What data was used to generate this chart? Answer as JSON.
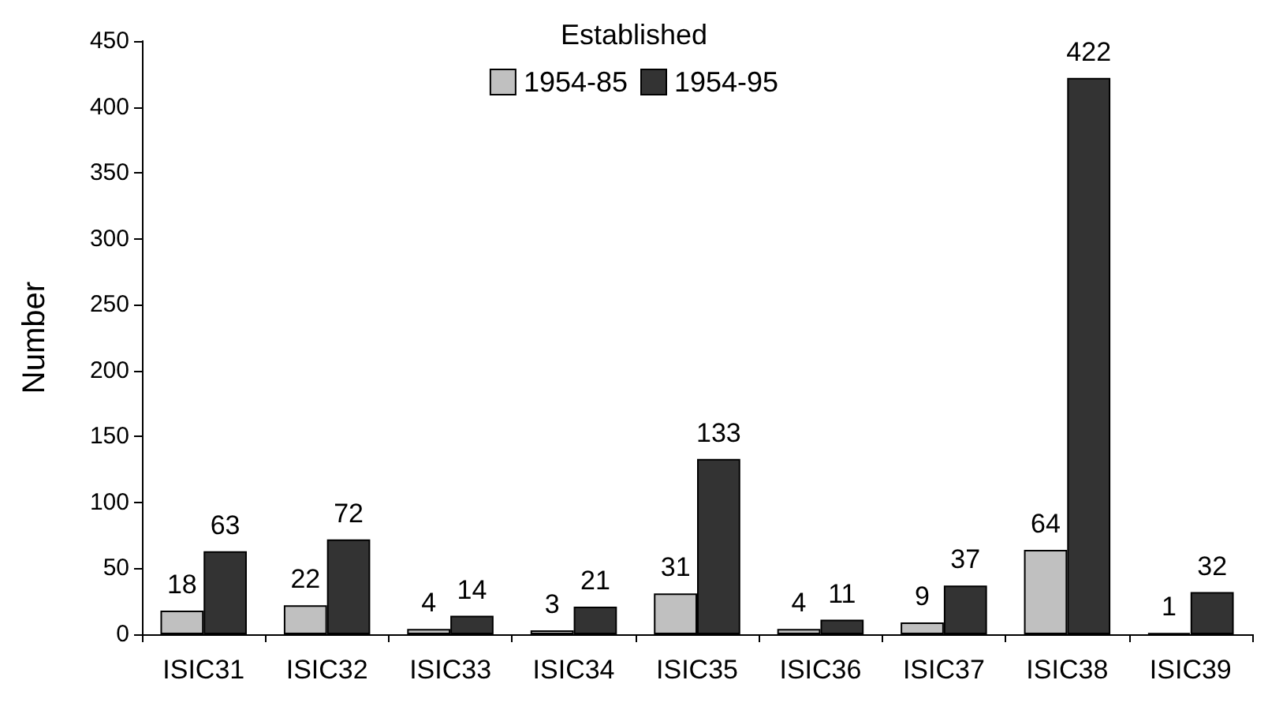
{
  "chart_data": {
    "type": "bar",
    "ylabel": "Number",
    "legend_title": "Established",
    "categories": [
      "ISIC31",
      "ISIC32",
      "ISIC33",
      "ISIC34",
      "ISIC35",
      "ISIC36",
      "ISIC37",
      "ISIC38",
      "ISIC39"
    ],
    "series": [
      {
        "name": "1954-85",
        "color": "#c0c0c0",
        "values": [
          18,
          22,
          4,
          3,
          31,
          4,
          9,
          64,
          1
        ]
      },
      {
        "name": "1954-95",
        "color": "#333333",
        "values": [
          63,
          72,
          14,
          21,
          133,
          11,
          37,
          422,
          32
        ]
      }
    ],
    "ylim": [
      0,
      450
    ],
    "yticks": [
      0,
      50,
      100,
      150,
      200,
      250,
      300,
      350,
      400,
      450
    ],
    "data_labels": true,
    "legend": "top",
    "grid": false
  }
}
